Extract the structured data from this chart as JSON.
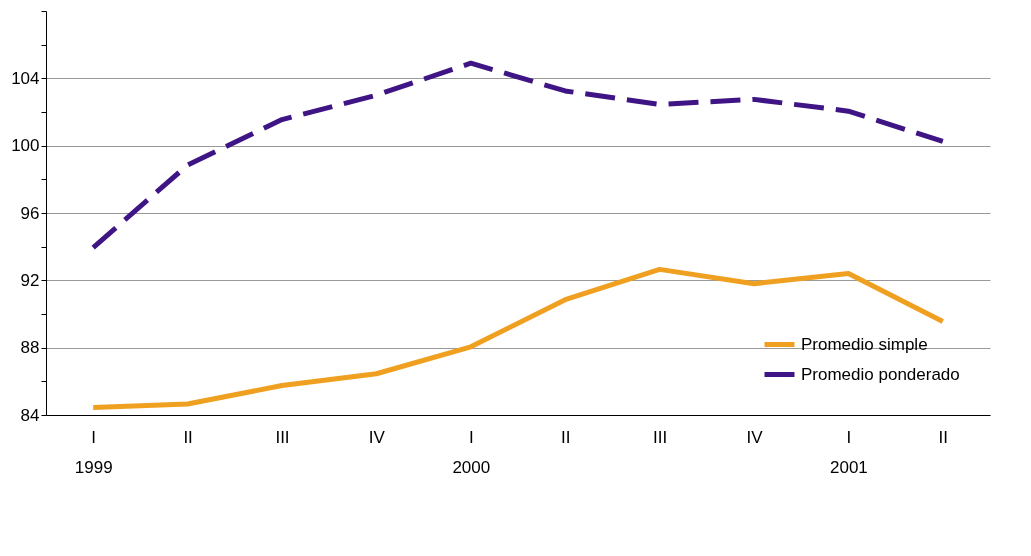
{
  "chart_data": {
    "type": "line",
    "categories": [
      "I\n1999",
      "II",
      "III",
      "IV",
      "I\n2000",
      "II",
      "III",
      "IV",
      "I\n2001",
      "II"
    ],
    "series": [
      {
        "name": "Promedio simple",
        "color": "#f0a020",
        "line_style": "solid",
        "values": [
          84.45,
          84.65,
          85.75,
          86.45,
          88.05,
          90.85,
          92.65,
          91.8,
          92.4,
          89.55
        ]
      },
      {
        "name": "Promedio ponderado",
        "color": "#3f1585",
        "line_style": "dashed",
        "values": [
          93.95,
          98.85,
          101.55,
          103.0,
          104.9,
          103.25,
          102.45,
          102.75,
          102.05,
          100.25
        ]
      }
    ],
    "ylim": [
      84,
      108
    ],
    "yticks": [
      84,
      {
        "value": 86,
        "label": null
      },
      88,
      {
        "value": 90,
        "label": null
      },
      92,
      {
        "value": 94,
        "label": null
      },
      96,
      {
        "value": 98,
        "label": null
      },
      100,
      {
        "value": 102,
        "label": null
      },
      104,
      {
        "value": 106,
        "label": null
      },
      {
        "value": 108,
        "label": null
      }
    ],
    "grid": "y",
    "legend": "bottom right",
    "marker": "none"
  }
}
